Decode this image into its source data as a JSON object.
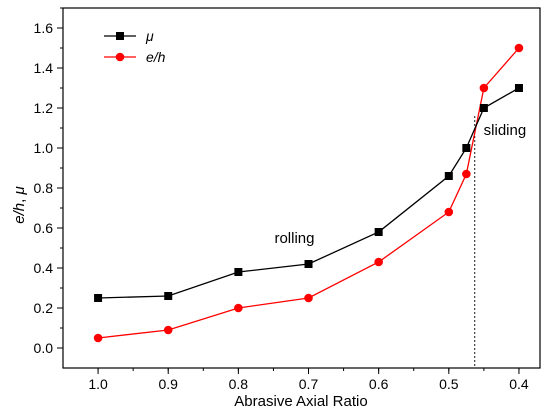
{
  "chart_data": {
    "type": "line",
    "xlabel": "Abrasive Axial Ratio",
    "ylabel_parts": [
      "e/h",
      ", ",
      "μ"
    ],
    "x_reversed": true,
    "xlim": [
      1.05,
      0.37
    ],
    "ylim": [
      -0.1,
      1.7
    ],
    "x_ticks": [
      1.0,
      0.9,
      0.8,
      0.7,
      0.6,
      0.5,
      0.4
    ],
    "x_tick_labels": [
      "1.0",
      "0.9",
      "0.8",
      "0.7",
      "0.6",
      "0.5",
      "0.4"
    ],
    "y_ticks": [
      0.0,
      0.2,
      0.4,
      0.6,
      0.8,
      1.0,
      1.2,
      1.4,
      1.6
    ],
    "y_tick_labels": [
      "0.0",
      "0.2",
      "0.4",
      "0.6",
      "0.8",
      "1.0",
      "1.2",
      "1.4",
      "1.6"
    ],
    "grid": false,
    "legend_position": "top-left",
    "series": [
      {
        "name": "μ",
        "color": "#000000",
        "marker": "square",
        "x": [
          1.0,
          0.9,
          0.8,
          0.7,
          0.6,
          0.5,
          0.475,
          0.45,
          0.4
        ],
        "y": [
          0.25,
          0.26,
          0.38,
          0.42,
          0.58,
          0.86,
          1.0,
          1.2,
          1.3
        ]
      },
      {
        "name": "e/h",
        "color": "#ff0000",
        "marker": "circle",
        "x": [
          1.0,
          0.9,
          0.8,
          0.7,
          0.6,
          0.5,
          0.475,
          0.45,
          0.4
        ],
        "y": [
          0.05,
          0.09,
          0.2,
          0.25,
          0.43,
          0.68,
          0.87,
          1.3,
          1.5
        ]
      }
    ],
    "annotations": [
      {
        "text": "rolling",
        "x": 0.72,
        "y": 0.55
      },
      {
        "text": "sliding",
        "x": 0.42,
        "y": 1.09
      }
    ],
    "divider_x": 0.463
  }
}
